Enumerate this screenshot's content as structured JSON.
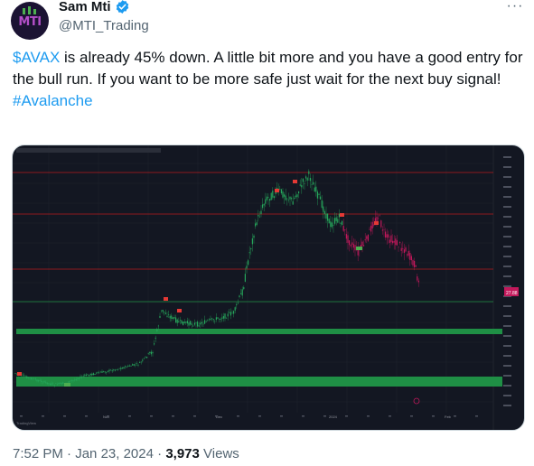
{
  "author": {
    "name": "Sam Mti",
    "handle": "@MTI_Trading",
    "avatar_text": "MTI"
  },
  "tweet": {
    "cashtag": "$AVAX",
    "text_after_cashtag": " is already 45% down. A little bit more and you have a good entry for the bull run. If you want to be more safe just wait for the next buy signal!",
    "hashtag": "#Avalanche"
  },
  "meta": {
    "time": "7:52 PM",
    "date": "Jan 23, 2024",
    "views_count": "3,973",
    "views_label": "Views"
  },
  "chart": {
    "x_tick_labels": [
      "Nov",
      "Dec",
      "2024",
      "Feb"
    ],
    "price_tag": "27.88"
  },
  "colors": {
    "link": "#1d9bf0",
    "chart_bg": "#131722",
    "up": "#26a65b",
    "down": "#c2185b",
    "support_zone": "#1f8f45",
    "resistance_line": "#b71c1c"
  },
  "icons": [
    "verified-badge-icon",
    "more-options-icon"
  ]
}
